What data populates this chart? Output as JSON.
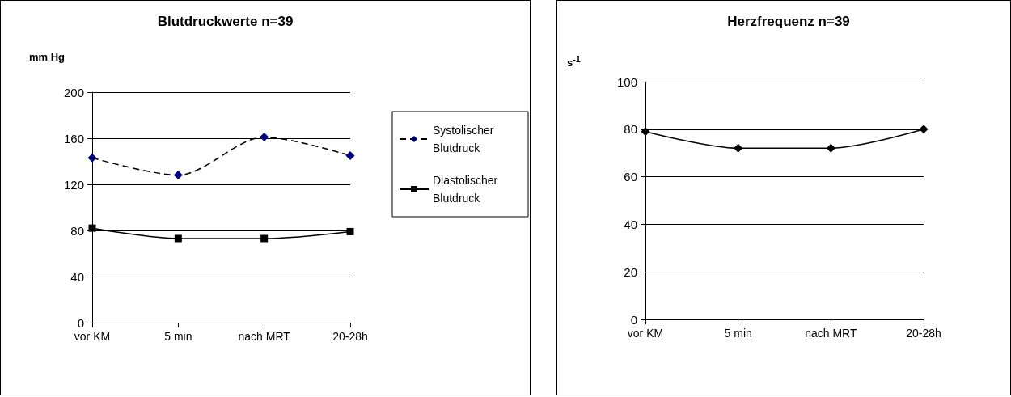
{
  "chart_data": [
    {
      "type": "line",
      "title": "Blutdruckwerte n=39",
      "ylabel": "mm Hg",
      "categories": [
        "vor KM",
        "5 min",
        "nach MRT",
        "20-28h"
      ],
      "series": [
        {
          "name": "Systolischer Blutdruck",
          "color": "#000080",
          "values": [
            143,
            128,
            161,
            145
          ],
          "marker": "diamond",
          "line_style": "dashed"
        },
        {
          "name": "Diastolischer Blutdruck",
          "color": "#000000",
          "values": [
            82,
            73,
            73,
            79
          ],
          "marker": "square",
          "line_style": "solid"
        }
      ],
      "ylim": [
        0,
        200
      ],
      "yticks": [
        0,
        40,
        80,
        120,
        160,
        200
      ],
      "grid": "y",
      "legend": "right"
    },
    {
      "type": "line",
      "title": "Herzfrequenz n=39",
      "ylabel": "s$^{-1}$",
      "categories": [
        "vor KM",
        "5 min",
        "nach MRT",
        "20-28h"
      ],
      "series": [
        {
          "color": "#000000",
          "values": [
            79,
            72,
            72,
            80
          ],
          "marker": "diamond",
          "line_style": "solid"
        }
      ],
      "ylim": [
        0,
        100
      ],
      "yticks": [
        0,
        20,
        40,
        60,
        80,
        100
      ],
      "grid": "y"
    }
  ]
}
